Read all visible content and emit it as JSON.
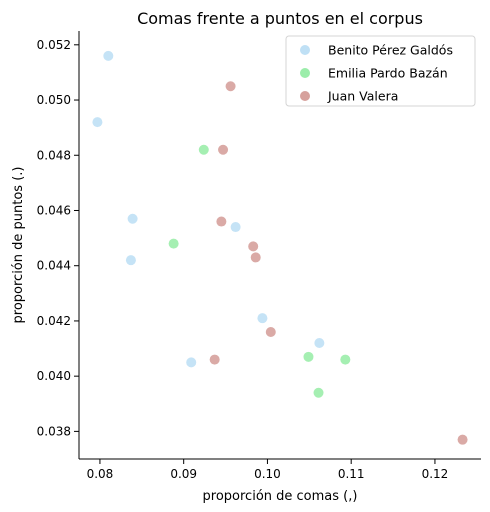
{
  "chart_data": {
    "type": "scatter",
    "title": "Comas frente a puntos en el corpus",
    "xlabel": "proporción de comas (,)",
    "ylabel": "proporción de puntos (.)",
    "xlim": [
      0.0775,
      0.1255
    ],
    "ylim": [
      0.037,
      0.0525
    ],
    "x_ticks": [
      0.08,
      0.09,
      0.1,
      0.11,
      0.12
    ],
    "x_tick_labels": [
      "0.08",
      "0.09",
      "0.10",
      "0.11",
      "0.12"
    ],
    "y_ticks": [
      0.038,
      0.04,
      0.042,
      0.044,
      0.046,
      0.048,
      0.05,
      0.052
    ],
    "y_tick_labels": [
      "0.038",
      "0.040",
      "0.042",
      "0.044",
      "0.046",
      "0.048",
      "0.050",
      "0.052"
    ],
    "grid": false,
    "legend_position": "top-right",
    "series": [
      {
        "name": "Benito Pérez Galdós",
        "color": "#bfe0f5",
        "points": [
          {
            "x": 0.081,
            "y": 0.0516
          },
          {
            "x": 0.0797,
            "y": 0.0492
          },
          {
            "x": 0.0839,
            "y": 0.0457
          },
          {
            "x": 0.0837,
            "y": 0.0442
          },
          {
            "x": 0.0962,
            "y": 0.0454
          },
          {
            "x": 0.0994,
            "y": 0.0421
          },
          {
            "x": 0.1062,
            "y": 0.0412
          },
          {
            "x": 0.0909,
            "y": 0.0405
          }
        ]
      },
      {
        "name": "Emilia Pardo Bazán",
        "color": "#9bedaa",
        "points": [
          {
            "x": 0.0924,
            "y": 0.0482
          },
          {
            "x": 0.0888,
            "y": 0.0448
          },
          {
            "x": 0.1049,
            "y": 0.0407
          },
          {
            "x": 0.1093,
            "y": 0.0406
          },
          {
            "x": 0.1061,
            "y": 0.0394
          }
        ]
      },
      {
        "name": "Juan Valera",
        "color": "#d6a19c",
        "points": [
          {
            "x": 0.0956,
            "y": 0.0505
          },
          {
            "x": 0.0947,
            "y": 0.0482
          },
          {
            "x": 0.0945,
            "y": 0.0456
          },
          {
            "x": 0.0983,
            "y": 0.0447
          },
          {
            "x": 0.0986,
            "y": 0.0443
          },
          {
            "x": 0.1004,
            "y": 0.0416
          },
          {
            "x": 0.0937,
            "y": 0.0406
          },
          {
            "x": 0.1233,
            "y": 0.0377
          }
        ]
      }
    ]
  }
}
